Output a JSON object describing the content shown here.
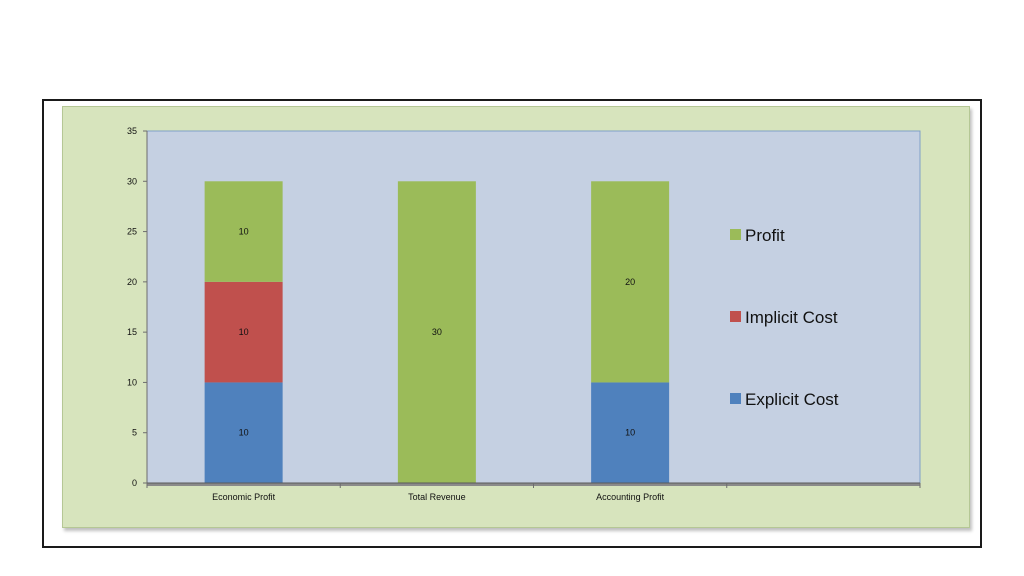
{
  "chart_data": {
    "type": "bar",
    "stacked": true,
    "categories": [
      "Economic Profit",
      "Total Revenue",
      "Accounting Profit"
    ],
    "series": [
      {
        "name": "Explicit Cost",
        "color": "#4f81bd",
        "values": [
          10,
          0,
          10
        ]
      },
      {
        "name": "Implicit Cost",
        "color": "#c0504d",
        "values": [
          10,
          0,
          0
        ]
      },
      {
        "name": "Profit",
        "color": "#9bbb59",
        "values": [
          10,
          30,
          20
        ]
      }
    ],
    "yticks": [
      "0",
      "5",
      "10",
      "15",
      "20",
      "25",
      "30",
      "35"
    ],
    "ylim": [
      0,
      35
    ],
    "title": "",
    "xlabel": "",
    "ylabel": "",
    "legend_position": "right",
    "grid": false,
    "colors": {
      "plot_background": "#c5d0e2",
      "chart_background": "#d7e4bd"
    }
  }
}
